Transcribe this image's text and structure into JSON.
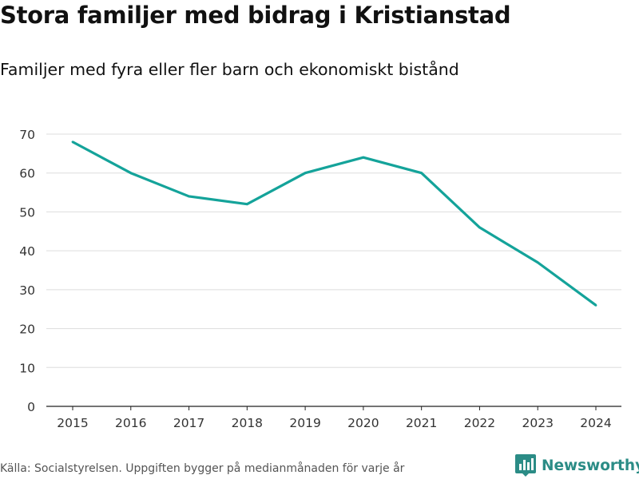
{
  "header": {
    "title": "Stora familjer med bidrag i Kristianstad",
    "subtitle": "Familjer med fyra eller fler barn och ekonomiskt bistånd"
  },
  "footer": {
    "source": "Källa: Socialstyrelsen. Uppgiften bygger på medianmånaden för varje år",
    "brand": "Newsworthy"
  },
  "colors": {
    "line": "#14a39a",
    "grid": "#dddddd",
    "axis": "#222222",
    "brand": "#2b8c86"
  },
  "chart_data": {
    "type": "line",
    "title": "Stora familjer med bidrag i Kristianstad",
    "subtitle": "Familjer med fyra eller fler barn och ekonomiskt bistånd",
    "xlabel": "",
    "ylabel": "",
    "x": [
      "2015",
      "2016",
      "2017",
      "2018",
      "2019",
      "2020",
      "2021",
      "2022",
      "2023",
      "2024"
    ],
    "series": [
      {
        "name": "Familjer med fyra eller fler barn och ekonomiskt bistånd",
        "values": [
          68,
          60,
          54,
          52,
          60,
          64,
          60,
          46,
          37,
          26
        ]
      }
    ],
    "ylim": [
      0,
      70
    ],
    "yticks": [
      0,
      10,
      20,
      30,
      40,
      50,
      60,
      70
    ],
    "grid": true
  }
}
